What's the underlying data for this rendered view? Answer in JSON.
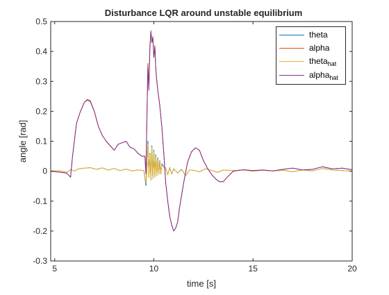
{
  "chart_data": {
    "type": "line",
    "title": "Disturbance LQR around unstable equilibrium",
    "xlabel": "time [s]",
    "ylabel": "angle [rad]",
    "xlim": [
      4.8,
      20
    ],
    "ylim": [
      -0.3,
      0.5
    ],
    "xticks": [
      5,
      10,
      15,
      20
    ],
    "yticks": [
      -0.3,
      -0.2,
      -0.1,
      0,
      0.1,
      0.2,
      0.3,
      0.4,
      0.5
    ],
    "xtick_labels": [
      "5",
      "10",
      "15",
      "20"
    ],
    "ytick_labels": [
      "-0.3",
      "-0.2",
      "-0.1",
      "0",
      "0.1",
      "0.2",
      "0.3",
      "0.4",
      "0.5"
    ],
    "grid": false,
    "legend_position": "top-right",
    "legend": [
      {
        "label": "theta",
        "sub": ""
      },
      {
        "label": "alpha",
        "sub": ""
      },
      {
        "label": "theta",
        "sub": "hat"
      },
      {
        "label": "alpha",
        "sub": "hat"
      }
    ],
    "series": [
      {
        "name": "theta",
        "color": "#0072BD",
        "x": [
          4.8,
          5.2,
          5.6,
          5.8,
          6.0,
          6.2,
          6.5,
          6.8,
          7.1,
          7.4,
          7.7,
          8.0,
          8.3,
          8.6,
          8.9,
          9.2,
          9.5,
          9.6,
          9.65,
          9.7,
          9.75,
          9.8,
          9.85,
          9.9,
          9.95,
          10.0,
          10.05,
          10.1,
          10.15,
          10.2,
          10.25,
          10.3,
          10.35,
          10.4,
          10.5,
          10.6,
          10.7,
          10.8,
          10.9,
          11.0,
          11.2,
          11.4,
          11.6,
          11.8,
          12.0,
          12.3,
          12.6,
          12.9,
          13.2,
          13.5,
          14.0,
          14.5,
          15.0,
          15.5,
          16.0,
          16.5,
          17.0,
          17.5,
          18.0,
          18.5,
          19.0,
          19.5,
          20.0
        ],
        "y": [
          0.0,
          0.002,
          -0.004,
          0.005,
          0.001,
          0.008,
          0.01,
          0.012,
          0.006,
          0.011,
          0.004,
          0.009,
          0.002,
          0.007,
          0.001,
          0.004,
          0.002,
          -0.048,
          0.01,
          0.1,
          -0.02,
          0.06,
          -0.03,
          0.085,
          -0.025,
          0.07,
          -0.02,
          0.055,
          -0.015,
          0.045,
          -0.01,
          0.035,
          -0.01,
          0.025,
          0.015,
          0.01,
          -0.012,
          0.012,
          -0.01,
          0.008,
          -0.006,
          0.006,
          -0.015,
          0.004,
          0.003,
          -0.002,
          0.008,
          0.003,
          -0.004,
          0.004,
          0.002,
          0.004,
          0.0,
          0.003,
          0.001,
          0.003,
          -0.002,
          0.004,
          0.001,
          0.009,
          0.004,
          0.002,
          0.0
        ]
      },
      {
        "name": "alpha",
        "color": "#D95319",
        "x": [
          4.8,
          5.2,
          5.6,
          5.8,
          5.9,
          6.1,
          6.3,
          6.5,
          6.65,
          6.8,
          7.0,
          7.2,
          7.4,
          7.6,
          7.8,
          8.0,
          8.2,
          8.4,
          8.6,
          8.8,
          9.0,
          9.2,
          9.4,
          9.55,
          9.6,
          9.65,
          9.7,
          9.75,
          9.8,
          9.85,
          9.9,
          9.95,
          10.0,
          10.05,
          10.1,
          10.15,
          10.2,
          10.3,
          10.4,
          10.5,
          10.6,
          10.7,
          10.8,
          10.9,
          11.0,
          11.1,
          11.2,
          11.3,
          11.5,
          11.7,
          11.9,
          12.1,
          12.3,
          12.5,
          12.7,
          12.9,
          13.1,
          13.3,
          13.5,
          13.7,
          14.0,
          14.5,
          15.0,
          15.5,
          16.0,
          16.5,
          17.0,
          17.5,
          18.0,
          18.5,
          19.0,
          19.5,
          20.0
        ],
        "y": [
          0.0,
          -0.003,
          -0.006,
          -0.02,
          0.05,
          0.16,
          0.2,
          0.23,
          0.24,
          0.235,
          0.2,
          0.15,
          0.12,
          0.1,
          0.085,
          0.07,
          0.09,
          0.095,
          0.1,
          0.08,
          0.075,
          0.06,
          0.05,
          0.05,
          -0.01,
          0.18,
          0.36,
          0.28,
          0.42,
          0.47,
          0.43,
          0.45,
          0.38,
          0.42,
          0.34,
          0.3,
          0.27,
          0.22,
          0.15,
          0.06,
          -0.04,
          -0.1,
          -0.15,
          -0.18,
          -0.2,
          -0.19,
          -0.17,
          -0.12,
          -0.04,
          0.03,
          0.065,
          0.078,
          0.07,
          0.035,
          0.01,
          -0.01,
          -0.025,
          -0.035,
          -0.035,
          -0.02,
          0.0,
          0.005,
          0.002,
          0.004,
          0.001,
          0.006,
          0.01,
          0.004,
          0.006,
          0.015,
          0.008,
          0.01,
          0.005
        ]
      },
      {
        "name": "",
        "color": "#EDB120",
        "x": [
          4.8,
          5.2,
          5.6,
          5.8,
          6.0,
          6.2,
          6.5,
          6.8,
          7.1,
          7.4,
          7.7,
          8.0,
          8.3,
          8.6,
          8.9,
          9.2,
          9.5,
          9.6,
          9.65,
          9.7,
          9.75,
          9.8,
          9.85,
          9.9,
          9.95,
          10.0,
          10.05,
          10.1,
          10.15,
          10.2,
          10.25,
          10.3,
          10.35,
          10.4,
          10.5,
          10.6,
          10.7,
          10.8,
          10.9,
          11.0,
          11.2,
          11.4,
          11.6,
          11.8,
          12.0,
          12.3,
          12.6,
          12.9,
          13.2,
          13.5,
          14.0,
          14.5,
          15.0,
          15.5,
          16.0,
          16.5,
          17.0,
          17.5,
          18.0,
          18.5,
          19.0,
          19.5,
          20.0
        ],
        "y": [
          0.0,
          0.002,
          -0.004,
          0.005,
          0.001,
          0.008,
          0.01,
          0.012,
          0.006,
          0.011,
          0.004,
          0.009,
          0.002,
          0.007,
          0.001,
          0.004,
          0.002,
          -0.04,
          0.01,
          0.09,
          -0.02,
          0.055,
          -0.03,
          0.08,
          -0.025,
          0.065,
          -0.02,
          0.05,
          -0.015,
          0.04,
          -0.01,
          0.03,
          -0.01,
          0.022,
          0.013,
          0.009,
          -0.012,
          0.01,
          -0.01,
          0.007,
          -0.006,
          0.005,
          -0.015,
          0.004,
          0.003,
          -0.002,
          0.008,
          0.003,
          -0.004,
          0.004,
          0.002,
          0.004,
          0.0,
          0.003,
          0.001,
          0.003,
          -0.002,
          0.004,
          0.001,
          0.009,
          0.004,
          0.002,
          0.0
        ]
      },
      {
        "name": "",
        "color": "#7E2F8E",
        "x": [
          4.8,
          5.2,
          5.6,
          5.8,
          5.9,
          6.1,
          6.3,
          6.5,
          6.65,
          6.8,
          7.0,
          7.2,
          7.4,
          7.6,
          7.8,
          8.0,
          8.2,
          8.4,
          8.6,
          8.8,
          9.0,
          9.2,
          9.4,
          9.55,
          9.6,
          9.65,
          9.7,
          9.75,
          9.8,
          9.85,
          9.9,
          9.95,
          10.0,
          10.05,
          10.1,
          10.15,
          10.2,
          10.3,
          10.4,
          10.5,
          10.6,
          10.7,
          10.8,
          10.9,
          11.0,
          11.1,
          11.2,
          11.3,
          11.5,
          11.7,
          11.9,
          12.1,
          12.3,
          12.5,
          12.7,
          12.9,
          13.1,
          13.3,
          13.5,
          13.7,
          14.0,
          14.5,
          15.0,
          15.5,
          16.0,
          16.5,
          17.0,
          17.5,
          18.0,
          18.5,
          19.0,
          19.5,
          20.0
        ],
        "y": [
          0.0,
          -0.003,
          -0.006,
          -0.02,
          0.05,
          0.16,
          0.2,
          0.23,
          0.238,
          0.232,
          0.2,
          0.15,
          0.12,
          0.1,
          0.085,
          0.07,
          0.09,
          0.095,
          0.1,
          0.08,
          0.075,
          0.06,
          0.05,
          0.05,
          -0.01,
          0.18,
          0.35,
          0.27,
          0.41,
          0.465,
          0.43,
          0.445,
          0.38,
          0.415,
          0.34,
          0.3,
          0.27,
          0.22,
          0.15,
          0.06,
          -0.04,
          -0.1,
          -0.15,
          -0.18,
          -0.2,
          -0.19,
          -0.17,
          -0.12,
          -0.04,
          0.03,
          0.065,
          0.078,
          0.07,
          0.035,
          0.01,
          -0.01,
          -0.025,
          -0.035,
          -0.035,
          -0.02,
          0.0,
          0.005,
          0.002,
          0.004,
          0.001,
          0.006,
          0.01,
          0.004,
          0.006,
          0.015,
          0.008,
          0.01,
          0.005
        ]
      }
    ]
  }
}
